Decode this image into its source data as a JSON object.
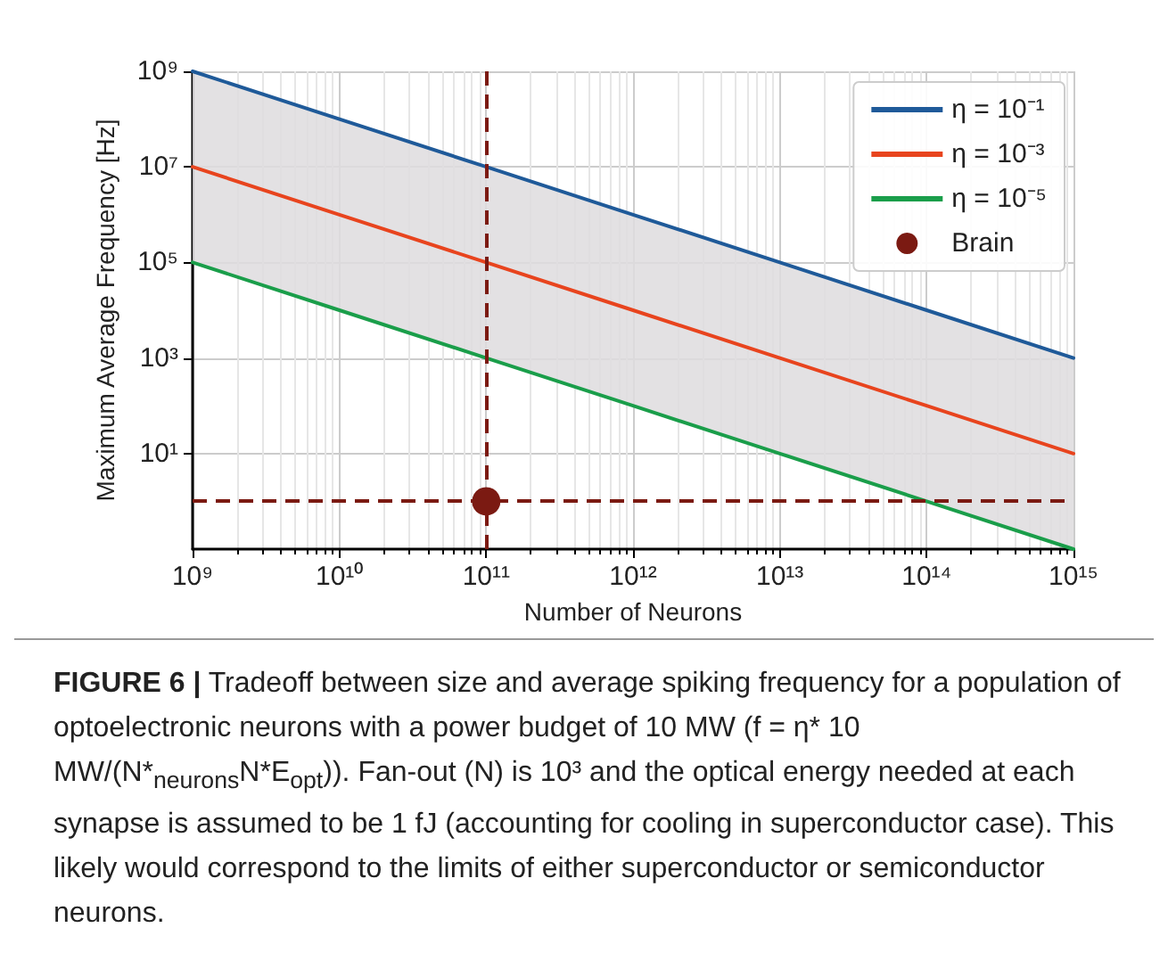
{
  "chart_data": {
    "type": "line",
    "xlabel": "Number of Neurons",
    "ylabel": "Maximum Average Frequency [Hz]",
    "x": [
      1000000000.0,
      10000000000.0,
      100000000000.0,
      1000000000000.0,
      10000000000000.0,
      100000000000000.0,
      1000000000000000.0
    ],
    "series": [
      {
        "name": "η = 10⁻¹",
        "color": "#1f5a99",
        "values": [
          1000000000.0,
          100000000.0,
          10000000.0,
          1000000.0,
          100000.0,
          10000.0,
          1000.0
        ]
      },
      {
        "name": "η = 10⁻³",
        "color": "#e8441e",
        "values": [
          10000000.0,
          1000000.0,
          100000.0,
          10000.0,
          1000.0,
          100.0,
          10.0
        ],
        "lower": [
          100000.0,
          10000.0,
          1000.0,
          100.0,
          10.0,
          1,
          0.1
        ],
        "upper": [
          1000000000.0,
          100000000.0,
          10000000.0,
          1000000.0,
          100000.0,
          10000.0,
          1000.0
        ]
      },
      {
        "name": "η = 10⁻⁵",
        "color": "#1a9e4a",
        "values": [
          100000.0,
          10000.0,
          1000.0,
          100.0,
          10.0,
          1,
          0.1
        ]
      },
      {
        "name": "Brain",
        "type": "scatter",
        "color": "#7b1a12",
        "x": [
          100000000000.0
        ],
        "values": [
          1
        ],
        "marker": "circle"
      }
    ],
    "ref_lines": [
      {
        "axis": "x",
        "value": 100000000000.0,
        "color": "#7b1a12",
        "line_style": "dashed"
      },
      {
        "axis": "y",
        "value": 1,
        "color": "#7b1a12",
        "line_style": "dashed"
      }
    ],
    "log": "xy",
    "xlim": [
      1000000000.0,
      1000000000000000.0
    ],
    "ylim": [
      0.1,
      1000000000.0
    ],
    "xticks": [
      {
        "value": 1000000000.0,
        "label": "10⁹"
      },
      {
        "value": 10000000000.0,
        "label": "10¹⁰"
      },
      {
        "value": 100000000000.0,
        "label": "10¹¹"
      },
      {
        "value": 1000000000000.0,
        "label": "10¹²"
      },
      {
        "value": 10000000000000.0,
        "label": "10¹³"
      },
      {
        "value": 100000000000000.0,
        "label": "10¹⁴"
      },
      {
        "value": 1000000000000000.0,
        "label": "10¹⁵"
      }
    ],
    "yticks": [
      {
        "value": 10,
        "label": "10¹"
      },
      {
        "value": 1000.0,
        "label": "10³"
      },
      {
        "value": 100000.0,
        "label": "10⁵"
      },
      {
        "value": 10000000.0,
        "label": "10⁷"
      },
      {
        "value": 1000000000.0,
        "label": "10⁹"
      }
    ],
    "grid": true,
    "legend": "top right",
    "marker": "none",
    "line_style": "solid",
    "annotations": [
      "FIGURE 6 |",
      "Tradeoff between size and average spiking frequency for a population of optoelectronic neurons with a power budget of 10 MW (f = η* 10 MW/(N*$_{neurons}$N*E$_{opt}$)). Fan-out (N) is 10³ and the optical energy needed at each synapse is assumed to be 1 fJ (accounting for cooling in superconductor case). This likely would correspond to the limits of either superconductor or semiconductor neurons."
    ]
  }
}
